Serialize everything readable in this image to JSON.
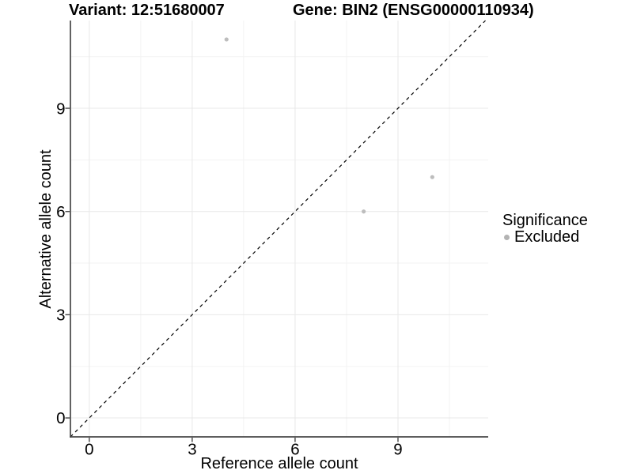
{
  "chart_data": {
    "type": "scatter",
    "title_variant": "Variant: 12:51680007",
    "title_gene": "Gene: BIN2 (ENSG00000110934)",
    "xlabel": "Reference allele count",
    "ylabel": "Alternative allele count",
    "xlim": [
      -0.55,
      11.63
    ],
    "ylim": [
      -0.55,
      11.55
    ],
    "x_ticks": [
      0,
      3,
      6,
      9
    ],
    "y_ticks": [
      0,
      3,
      6,
      9
    ],
    "x_minor_ticks": [
      1.5,
      4.5,
      7.5,
      10.5
    ],
    "y_minor_ticks": [
      1.5,
      4.5,
      7.5,
      10.5
    ],
    "grid": "major+minor",
    "series": [
      {
        "name": "Excluded",
        "color": "#bdbdbd",
        "points": [
          [
            4,
            11
          ],
          [
            8,
            6
          ],
          [
            10,
            7
          ]
        ]
      }
    ],
    "reference_line": {
      "type": "identity",
      "style": "dashed",
      "color": "#000000"
    },
    "legend": {
      "title": "Significance",
      "position": "right",
      "items": [
        {
          "label": "Excluded",
          "color": "#b3b3b3",
          "marker": "circle"
        }
      ]
    }
  },
  "colors": {
    "background": "#ffffff",
    "grid_major": "#e8e8e8",
    "grid_minor": "#f3f3f3",
    "axis_line": "#474747",
    "text": "#000000"
  }
}
